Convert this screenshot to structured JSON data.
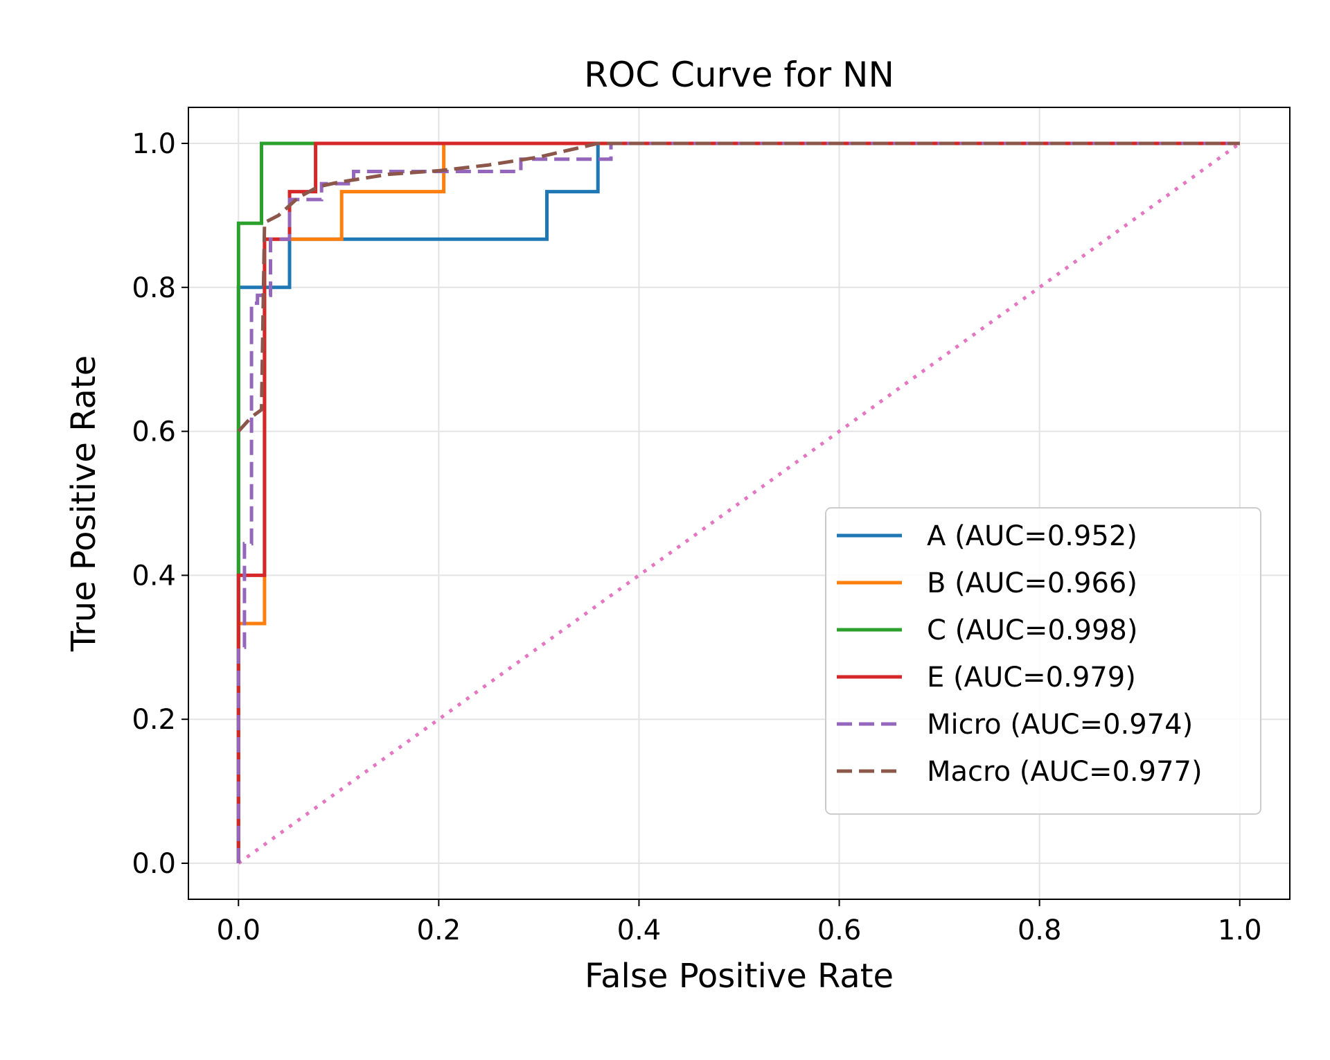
{
  "chart_data": {
    "type": "line",
    "title": "ROC Curve for NN",
    "xlabel": "False Positive Rate",
    "ylabel": "True Positive Rate",
    "xlim": [
      -0.05,
      1.05
    ],
    "ylim": [
      -0.05,
      1.05
    ],
    "xticks": [
      0.0,
      0.2,
      0.4,
      0.6,
      0.8,
      1.0
    ],
    "yticks": [
      0.0,
      0.2,
      0.4,
      0.6,
      0.8,
      1.0
    ],
    "xtick_labels": [
      "0.0",
      "0.2",
      "0.4",
      "0.6",
      "0.8",
      "1.0"
    ],
    "ytick_labels": [
      "0.0",
      "0.2",
      "0.4",
      "0.6",
      "0.8",
      "1.0"
    ],
    "grid": true,
    "legend_position": "lower-right",
    "series": [
      {
        "name": "A (AUC=0.952)",
        "color": "#1f77b4",
        "style": "solid",
        "x": [
          0,
          0,
          0,
          0.051,
          0.051,
          0.308,
          0.308,
          0.359,
          0.359,
          1.0
        ],
        "y": [
          0,
          0.333,
          0.8,
          0.8,
          0.867,
          0.867,
          0.933,
          0.933,
          1.0,
          1.0
        ]
      },
      {
        "name": "B (AUC=0.966)",
        "color": "#ff7f0e",
        "style": "solid",
        "x": [
          0,
          0,
          0.026,
          0.026,
          0.103,
          0.103,
          0.205,
          0.205,
          1.0
        ],
        "y": [
          0,
          0.333,
          0.333,
          0.867,
          0.867,
          0.933,
          0.933,
          1.0,
          1.0
        ]
      },
      {
        "name": "C (AUC=0.998)",
        "color": "#2ca02c",
        "style": "solid",
        "x": [
          0,
          0,
          0,
          0.023,
          0.023,
          1.0
        ],
        "y": [
          0,
          0.4,
          0.889,
          0.889,
          1.0,
          1.0
        ]
      },
      {
        "name": "E (AUC=0.979)",
        "color": "#d62728",
        "style": "solid",
        "x": [
          0,
          0,
          0.026,
          0.026,
          0.051,
          0.051,
          0.077,
          0.077,
          1.0
        ],
        "y": [
          0,
          0.4,
          0.4,
          0.867,
          0.867,
          0.933,
          0.933,
          1.0,
          1.0
        ]
      },
      {
        "name": "Micro (AUC=0.974)",
        "color": "#9467bd",
        "style": "dashed",
        "x": [
          0,
          0,
          0.006,
          0.006,
          0.013,
          0.013,
          0.019,
          0.019,
          0.032,
          0.032,
          0.051,
          0.051,
          0.083,
          0.083,
          0.115,
          0.115,
          0.282,
          0.282,
          0.372,
          0.372,
          1.0
        ],
        "y": [
          0,
          0.3,
          0.3,
          0.444,
          0.444,
          0.778,
          0.778,
          0.789,
          0.789,
          0.867,
          0.867,
          0.922,
          0.922,
          0.944,
          0.944,
          0.961,
          0.961,
          0.978,
          0.978,
          1.0,
          1.0
        ]
      },
      {
        "name": "Macro (AUC=0.977)",
        "color": "#8c564b",
        "style": "dashed",
        "x": [
          0,
          0.013,
          0.023,
          0.026,
          0.04,
          0.06,
          0.08,
          0.1,
          0.15,
          0.2,
          0.25,
          0.3,
          0.359,
          1.0
        ],
        "y": [
          0.6,
          0.62,
          0.63,
          0.89,
          0.9,
          0.925,
          0.94,
          0.946,
          0.957,
          0.962,
          0.97,
          0.981,
          1.0,
          1.0
        ]
      },
      {
        "name": "",
        "color": "#e377c2",
        "style": "dotted",
        "x": [
          0,
          1
        ],
        "y": [
          0,
          1
        ]
      }
    ]
  }
}
